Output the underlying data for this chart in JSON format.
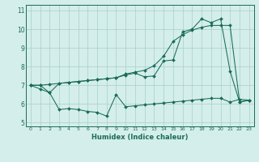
{
  "line1_x": [
    0,
    1,
    2,
    3,
    4,
    5,
    6,
    7,
    8,
    9,
    10,
    11,
    12,
    13,
    14,
    15,
    16,
    17,
    18,
    19,
    20,
    21,
    22,
    23
  ],
  "line1_y": [
    7.0,
    6.8,
    6.6,
    5.7,
    5.75,
    5.7,
    5.6,
    5.55,
    5.35,
    6.5,
    5.85,
    5.9,
    5.95,
    6.0,
    6.05,
    6.1,
    6.15,
    6.2,
    6.25,
    6.3,
    6.3,
    6.1,
    6.25,
    6.2
  ],
  "line2_x": [
    0,
    1,
    2,
    3,
    4,
    5,
    6,
    7,
    8,
    9,
    10,
    11,
    12,
    13,
    14,
    15,
    16,
    17,
    18,
    19,
    20,
    21,
    22,
    23
  ],
  "line2_y": [
    7.0,
    7.0,
    6.6,
    7.1,
    7.15,
    7.2,
    7.25,
    7.3,
    7.35,
    7.4,
    7.55,
    7.65,
    7.45,
    7.5,
    8.3,
    8.35,
    9.85,
    10.0,
    10.55,
    10.35,
    10.55,
    7.75,
    6.1,
    6.2
  ],
  "line3_x": [
    0,
    1,
    2,
    3,
    4,
    5,
    6,
    7,
    8,
    9,
    10,
    11,
    12,
    13,
    14,
    15,
    16,
    17,
    18,
    19,
    20,
    21,
    22,
    23
  ],
  "line3_y": [
    7.0,
    7.0,
    7.05,
    7.1,
    7.15,
    7.2,
    7.25,
    7.3,
    7.35,
    7.4,
    7.6,
    7.7,
    7.8,
    8.05,
    8.55,
    9.35,
    9.7,
    9.95,
    10.1,
    10.2,
    10.2,
    10.2,
    6.1,
    6.2
  ],
  "line_color": "#1a6b5a",
  "bg_color": "#d4eeeb",
  "grid_color": "#a8cfc9",
  "xlabel": "Humidex (Indice chaleur)",
  "ylim": [
    4.8,
    11.3
  ],
  "xlim": [
    -0.5,
    23.5
  ],
  "yticks": [
    5,
    6,
    7,
    8,
    9,
    10,
    11
  ],
  "xticks": [
    0,
    1,
    2,
    3,
    4,
    5,
    6,
    7,
    8,
    9,
    10,
    11,
    12,
    13,
    14,
    15,
    16,
    17,
    18,
    19,
    20,
    21,
    22,
    23
  ]
}
